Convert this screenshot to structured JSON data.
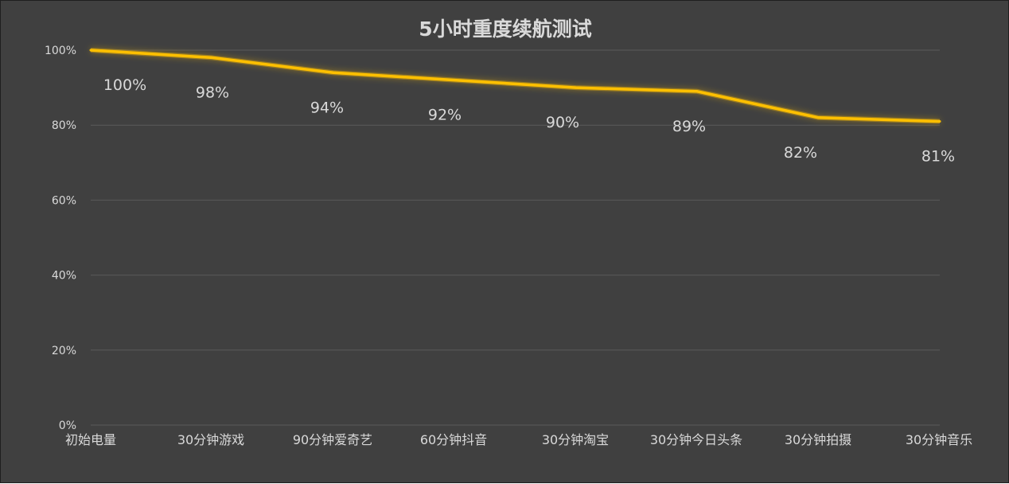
{
  "chart_data": {
    "type": "line",
    "title": "5小时重度续航测试",
    "xlabel": "",
    "ylabel": "",
    "categories": [
      "初始电量",
      "30分钟游戏",
      "90分钟爱奇艺",
      "60分钟抖音",
      "30分钟淘宝",
      "30分钟今日头条",
      "30分钟拍摄",
      "30分钟音乐"
    ],
    "series": [
      {
        "values": [
          100,
          98,
          94,
          92,
          90,
          89,
          82,
          81
        ],
        "color": "#ffc000"
      }
    ],
    "data_labels": [
      "100%",
      "98%",
      "94%",
      "92%",
      "90%",
      "89%",
      "82%",
      "81%"
    ],
    "ylim": [
      0,
      100
    ],
    "yticks": [
      0,
      20,
      40,
      60,
      80,
      100
    ],
    "ytick_labels": [
      "0%",
      "20%",
      "40%",
      "60%",
      "80%",
      "100%"
    ],
    "grid": true,
    "legend": "none",
    "background": "#404040",
    "line_color": "#ffc000",
    "text_color": "#d9d9d9"
  }
}
